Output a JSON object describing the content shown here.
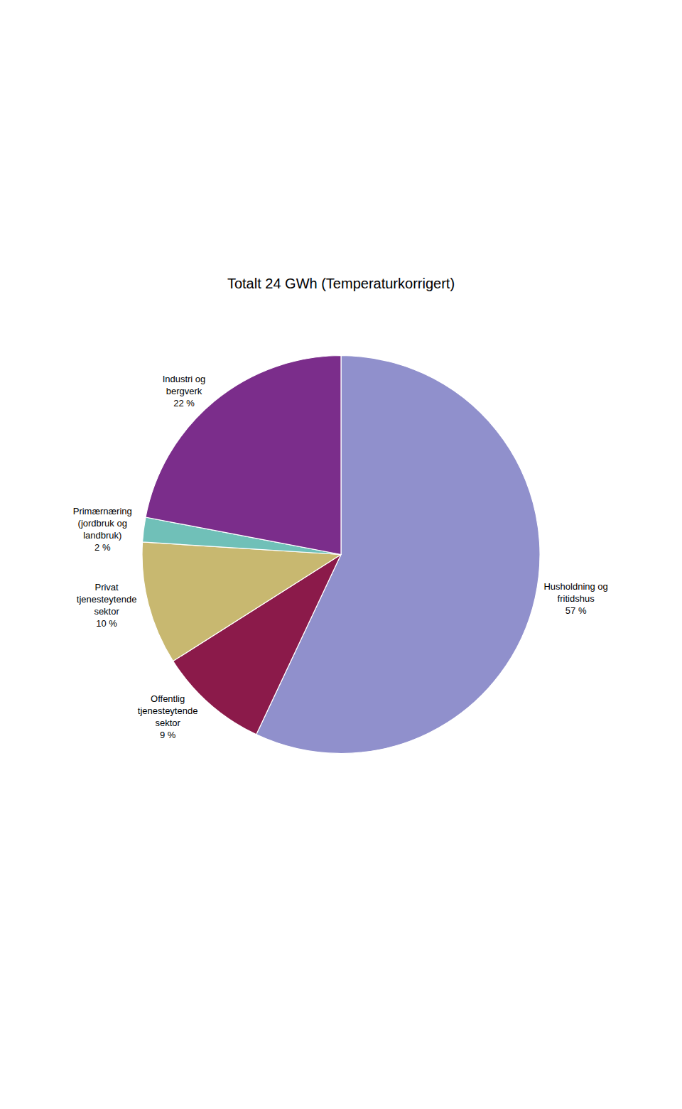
{
  "chart_data": {
    "type": "pie",
    "title": "Totalt 24 GWh (Temperaturkorrigert)",
    "categories": [
      "Husholdning og\nfritidshus",
      "Offentlig\ntjenesteytende\nsektor",
      "Privat\ntjenesteytende\nsektor",
      "Primærnæring\n(jordbruk og\nlandbruk)",
      "Industri og\nbergverk"
    ],
    "values": [
      57,
      9,
      10,
      2,
      22
    ],
    "value_labels": [
      "57 %",
      "9 %",
      "10 %",
      "2 %",
      "22 %"
    ],
    "colors": [
      "#9090cc",
      "#8b1a4a",
      "#c8b870",
      "#70c0b8",
      "#7b2d8b"
    ],
    "data_labels": true
  }
}
